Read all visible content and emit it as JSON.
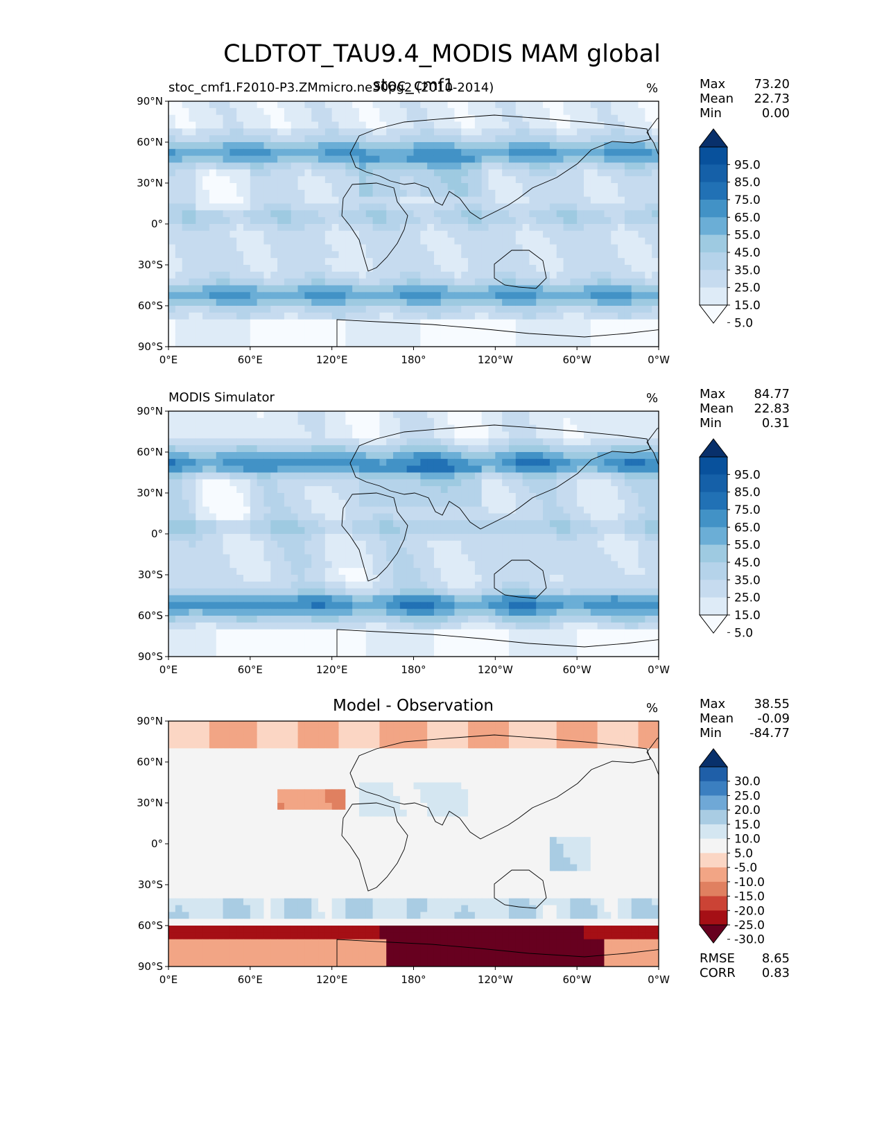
{
  "figure": {
    "title": "CLDTOT_TAU9.4_MODIS MAM global"
  },
  "panels": [
    {
      "id": "test",
      "left_title": "stoc_cmf1.F2010-P3.ZMmicro.ne30pg2 (2010-2014)",
      "center_title": "stoc_cmf1",
      "units": "%",
      "stats": {
        "max_label": "Max",
        "max": "73.20",
        "mean_label": "Mean",
        "mean": "22.73",
        "min_label": "Min",
        "min": "0.00"
      },
      "colorbar": {
        "colormap": "Blues",
        "labels": [
          "95.0",
          "85.0",
          "75.0",
          "65.0",
          "55.0",
          "45.0",
          "35.0",
          "25.0",
          "15.0",
          "5.0"
        ]
      }
    },
    {
      "id": "ref",
      "left_title": "MODIS Simulator",
      "center_title": "",
      "units": "%",
      "stats": {
        "max_label": "Max",
        "max": "84.77",
        "mean_label": "Mean",
        "mean": "22.83",
        "min_label": "Min",
        "min": "0.31"
      },
      "colorbar": {
        "colormap": "Blues",
        "labels": [
          "95.0",
          "85.0",
          "75.0",
          "65.0",
          "55.0",
          "45.0",
          "35.0",
          "25.0",
          "15.0",
          "5.0"
        ]
      }
    },
    {
      "id": "diff",
      "left_title": "",
      "center_title": "Model - Observation",
      "units": "%",
      "stats": {
        "max_label": "Max",
        "max": "38.55",
        "mean_label": "Mean",
        "mean": "-0.09",
        "min_label": "Min",
        "min": "-84.77"
      },
      "colorbar": {
        "colormap": "RdBu",
        "labels": [
          "30.0",
          "25.0",
          "20.0",
          "15.0",
          "10.0",
          "5.0",
          "-5.0",
          "-10.0",
          "-15.0",
          "-20.0",
          "-25.0",
          "-30.0"
        ]
      },
      "metrics": {
        "rmse_label": "RMSE",
        "rmse": "8.65",
        "corr_label": "CORR",
        "corr": "0.83"
      }
    }
  ],
  "axes": {
    "lat_ticks": [
      "90°N",
      "60°N",
      "30°N",
      "0°",
      "30°S",
      "60°S",
      "90°S"
    ],
    "lon_ticks": [
      "0°E",
      "60°E",
      "120°E",
      "180°",
      "120°W",
      "60°W",
      "0°W"
    ]
  },
  "colors": {
    "blues": [
      "#f7fbff",
      "#deebf7",
      "#c6dbef",
      "#b5d3ea",
      "#9ecae1",
      "#6baed6",
      "#4292c6",
      "#2171b5",
      "#1560a8",
      "#08519c",
      "#08306b"
    ],
    "rdbu": [
      "#67001f",
      "#a50f15",
      "#cb4335",
      "#e08060",
      "#f2a585",
      "#fbd6c4",
      "#f4f4f4",
      "#d4e6f1",
      "#a9cce3",
      "#6fa8d6",
      "#3b7fc0",
      "#1f5fa8",
      "#08306b"
    ],
    "coast": "#000000"
  }
}
